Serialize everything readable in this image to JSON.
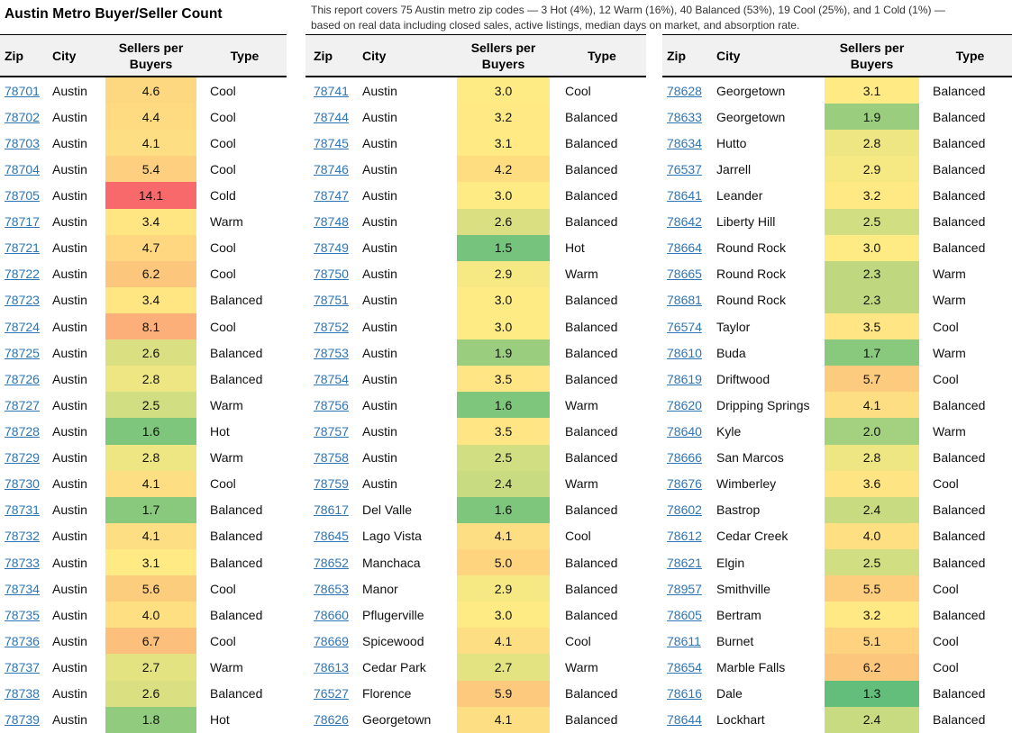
{
  "page": {
    "title": "Austin Metro Buyer/Seller Count",
    "note_line1": "This report covers 75 Austin metro zip codes — 3 Hot (4%), 12 Warm (16%), 40 Balanced (53%), 19 Cool (25%), and 1 Cold (1%) —",
    "note_line2": "based on real data including closed sales, active listings, median days on market, and absorption rate."
  },
  "columns": {
    "zip": "Zip",
    "city": "City",
    "ratio": "Sellers per Buyers",
    "type": "Type"
  },
  "color_scale": {
    "min_color": "#63BE7B",
    "mid_color": "#FFEB84",
    "max_color": "#F8696B"
  },
  "tables": [
    {
      "rows": [
        {
          "zip": "78701",
          "city": "Austin",
          "value": "4.6",
          "type": "Cool"
        },
        {
          "zip": "78702",
          "city": "Austin",
          "value": "4.4",
          "type": "Cool"
        },
        {
          "zip": "78703",
          "city": "Austin",
          "value": "4.1",
          "type": "Cool"
        },
        {
          "zip": "78704",
          "city": "Austin",
          "value": "5.4",
          "type": "Cool"
        },
        {
          "zip": "78705",
          "city": "Austin",
          "value": "14.1",
          "type": "Cold"
        },
        {
          "zip": "78717",
          "city": "Austin",
          "value": "3.4",
          "type": "Warm"
        },
        {
          "zip": "78721",
          "city": "Austin",
          "value": "4.7",
          "type": "Cool"
        },
        {
          "zip": "78722",
          "city": "Austin",
          "value": "6.2",
          "type": "Cool"
        },
        {
          "zip": "78723",
          "city": "Austin",
          "value": "3.4",
          "type": "Balanced"
        },
        {
          "zip": "78724",
          "city": "Austin",
          "value": "8.1",
          "type": "Cool"
        },
        {
          "zip": "78725",
          "city": "Austin",
          "value": "2.6",
          "type": "Balanced"
        },
        {
          "zip": "78726",
          "city": "Austin",
          "value": "2.8",
          "type": "Balanced"
        },
        {
          "zip": "78727",
          "city": "Austin",
          "value": "2.5",
          "type": "Warm"
        },
        {
          "zip": "78728",
          "city": "Austin",
          "value": "1.6",
          "type": "Hot"
        },
        {
          "zip": "78729",
          "city": "Austin",
          "value": "2.8",
          "type": "Warm"
        },
        {
          "zip": "78730",
          "city": "Austin",
          "value": "4.1",
          "type": "Cool"
        },
        {
          "zip": "78731",
          "city": "Austin",
          "value": "1.7",
          "type": "Balanced"
        },
        {
          "zip": "78732",
          "city": "Austin",
          "value": "4.1",
          "type": "Balanced"
        },
        {
          "zip": "78733",
          "city": "Austin",
          "value": "3.1",
          "type": "Balanced"
        },
        {
          "zip": "78734",
          "city": "Austin",
          "value": "5.6",
          "type": "Cool"
        },
        {
          "zip": "78735",
          "city": "Austin",
          "value": "4.0",
          "type": "Balanced"
        },
        {
          "zip": "78736",
          "city": "Austin",
          "value": "6.7",
          "type": "Cool"
        },
        {
          "zip": "78737",
          "city": "Austin",
          "value": "2.7",
          "type": "Warm"
        },
        {
          "zip": "78738",
          "city": "Austin",
          "value": "2.6",
          "type": "Balanced"
        },
        {
          "zip": "78739",
          "city": "Austin",
          "value": "1.8",
          "type": "Hot"
        }
      ]
    },
    {
      "rows": [
        {
          "zip": "78741",
          "city": "Austin",
          "value": "3.0",
          "type": "Cool"
        },
        {
          "zip": "78744",
          "city": "Austin",
          "value": "3.2",
          "type": "Balanced"
        },
        {
          "zip": "78745",
          "city": "Austin",
          "value": "3.1",
          "type": "Balanced"
        },
        {
          "zip": "78746",
          "city": "Austin",
          "value": "4.2",
          "type": "Balanced"
        },
        {
          "zip": "78747",
          "city": "Austin",
          "value": "3.0",
          "type": "Balanced"
        },
        {
          "zip": "78748",
          "city": "Austin",
          "value": "2.6",
          "type": "Balanced"
        },
        {
          "zip": "78749",
          "city": "Austin",
          "value": "1.5",
          "type": "Hot"
        },
        {
          "zip": "78750",
          "city": "Austin",
          "value": "2.9",
          "type": "Warm"
        },
        {
          "zip": "78751",
          "city": "Austin",
          "value": "3.0",
          "type": "Balanced"
        },
        {
          "zip": "78752",
          "city": "Austin",
          "value": "3.0",
          "type": "Balanced"
        },
        {
          "zip": "78753",
          "city": "Austin",
          "value": "1.9",
          "type": "Balanced"
        },
        {
          "zip": "78754",
          "city": "Austin",
          "value": "3.5",
          "type": "Balanced"
        },
        {
          "zip": "78756",
          "city": "Austin",
          "value": "1.6",
          "type": "Warm"
        },
        {
          "zip": "78757",
          "city": "Austin",
          "value": "3.5",
          "type": "Balanced"
        },
        {
          "zip": "78758",
          "city": "Austin",
          "value": "2.5",
          "type": "Balanced"
        },
        {
          "zip": "78759",
          "city": "Austin",
          "value": "2.4",
          "type": "Warm"
        },
        {
          "zip": "78617",
          "city": "Del Valle",
          "value": "1.6",
          "type": "Balanced"
        },
        {
          "zip": "78645",
          "city": "Lago Vista",
          "value": "4.1",
          "type": "Cool"
        },
        {
          "zip": "78652",
          "city": "Manchaca",
          "value": "5.0",
          "type": "Balanced"
        },
        {
          "zip": "78653",
          "city": "Manor",
          "value": "2.9",
          "type": "Balanced"
        },
        {
          "zip": "78660",
          "city": "Pflugerville",
          "value": "3.0",
          "type": "Balanced"
        },
        {
          "zip": "78669",
          "city": "Spicewood",
          "value": "4.1",
          "type": "Cool"
        },
        {
          "zip": "78613",
          "city": "Cedar Park",
          "value": "2.7",
          "type": "Warm"
        },
        {
          "zip": "76527",
          "city": "Florence",
          "value": "5.9",
          "type": "Balanced"
        },
        {
          "zip": "78626",
          "city": "Georgetown",
          "value": "4.1",
          "type": "Balanced"
        }
      ]
    },
    {
      "rows": [
        {
          "zip": "78628",
          "city": "Georgetown",
          "value": "3.1",
          "type": "Balanced"
        },
        {
          "zip": "78633",
          "city": "Georgetown",
          "value": "1.9",
          "type": "Balanced"
        },
        {
          "zip": "78634",
          "city": "Hutto",
          "value": "2.8",
          "type": "Balanced"
        },
        {
          "zip": "76537",
          "city": "Jarrell",
          "value": "2.9",
          "type": "Balanced"
        },
        {
          "zip": "78641",
          "city": "Leander",
          "value": "3.2",
          "type": "Balanced"
        },
        {
          "zip": "78642",
          "city": "Liberty Hill",
          "value": "2.5",
          "type": "Balanced"
        },
        {
          "zip": "78664",
          "city": "Round Rock",
          "value": "3.0",
          "type": "Balanced"
        },
        {
          "zip": "78665",
          "city": "Round Rock",
          "value": "2.3",
          "type": "Warm"
        },
        {
          "zip": "78681",
          "city": "Round Rock",
          "value": "2.3",
          "type": "Warm"
        },
        {
          "zip": "76574",
          "city": "Taylor",
          "value": "3.5",
          "type": "Cool"
        },
        {
          "zip": "78610",
          "city": "Buda",
          "value": "1.7",
          "type": "Warm"
        },
        {
          "zip": "78619",
          "city": "Driftwood",
          "value": "5.7",
          "type": "Cool"
        },
        {
          "zip": "78620",
          "city": "Dripping Springs",
          "value": "4.1",
          "type": "Balanced"
        },
        {
          "zip": "78640",
          "city": "Kyle",
          "value": "2.0",
          "type": "Warm"
        },
        {
          "zip": "78666",
          "city": "San Marcos",
          "value": "2.8",
          "type": "Balanced"
        },
        {
          "zip": "78676",
          "city": "Wimberley",
          "value": "3.6",
          "type": "Cool"
        },
        {
          "zip": "78602",
          "city": "Bastrop",
          "value": "2.4",
          "type": "Balanced"
        },
        {
          "zip": "78612",
          "city": "Cedar Creek",
          "value": "4.0",
          "type": "Balanced"
        },
        {
          "zip": "78621",
          "city": "Elgin",
          "value": "2.5",
          "type": "Balanced"
        },
        {
          "zip": "78957",
          "city": "Smithville",
          "value": "5.5",
          "type": "Cool"
        },
        {
          "zip": "78605",
          "city": "Bertram",
          "value": "3.2",
          "type": "Balanced"
        },
        {
          "zip": "78611",
          "city": "Burnet",
          "value": "5.1",
          "type": "Cool"
        },
        {
          "zip": "78654",
          "city": "Marble Falls",
          "value": "6.2",
          "type": "Cool"
        },
        {
          "zip": "78616",
          "city": "Dale",
          "value": "1.3",
          "type": "Balanced"
        },
        {
          "zip": "78644",
          "city": "Lockhart",
          "value": "2.4",
          "type": "Balanced"
        }
      ]
    }
  ]
}
